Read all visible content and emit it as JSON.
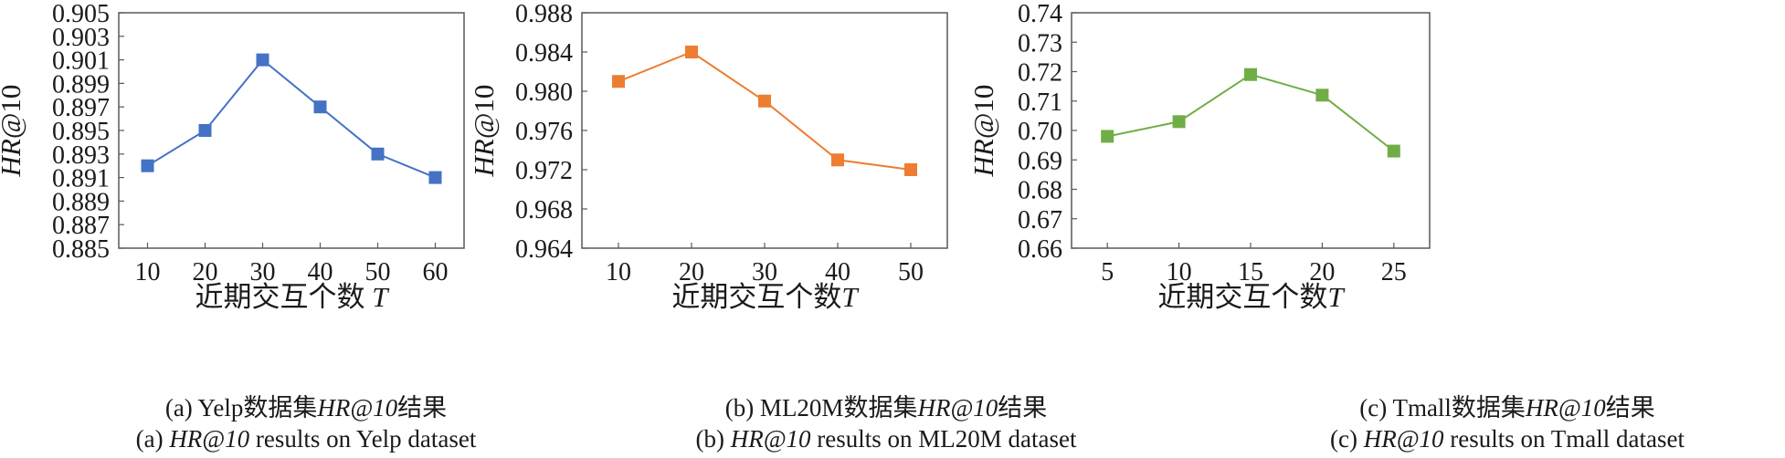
{
  "chart_data": [
    {
      "type": "line",
      "categories": [
        "10",
        "20",
        "30",
        "40",
        "50",
        "60"
      ],
      "series": [
        {
          "values": [
            0.892,
            0.895,
            0.901,
            0.897,
            0.893,
            0.891
          ],
          "color": "#4472c4"
        }
      ],
      "ylabel": "HR@10",
      "xlabel": "近期交互个数 T",
      "ylim": [
        0.885,
        0.905
      ],
      "yticks": [
        "0.885",
        "0.887",
        "0.889",
        "0.891",
        "0.893",
        "0.895",
        "0.897",
        "0.899",
        "0.901",
        "0.903",
        "0.905"
      ],
      "grid": false,
      "legend": "none",
      "caption": {
        "cn_prefix": "(a) Yelp数据集",
        "cn_metric": "HR@10",
        "cn_suffix": "结果",
        "en_prefix": "(a) ",
        "en_metric": "HR@10",
        "en_suffix": " results on Yelp dataset"
      }
    },
    {
      "type": "line",
      "categories": [
        "10",
        "20",
        "30",
        "40",
        "50"
      ],
      "series": [
        {
          "values": [
            0.981,
            0.984,
            0.979,
            0.973,
            0.972
          ],
          "color": "#ed7d31"
        }
      ],
      "ylabel": "HR@10",
      "xlabel": "近期交互个数T",
      "ylim": [
        0.964,
        0.988
      ],
      "yticks": [
        "0.964",
        "0.968",
        "0.972",
        "0.976",
        "0.980",
        "0.984",
        "0.988"
      ],
      "grid": false,
      "legend": "none",
      "caption": {
        "cn_prefix": "(b) ML20M数据集",
        "cn_metric": "HR@10",
        "cn_suffix": "结果",
        "en_prefix": "(b) ",
        "en_metric": "HR@10",
        "en_suffix": " results on ML20M dataset"
      }
    },
    {
      "type": "line",
      "categories": [
        "5",
        "10",
        "15",
        "20",
        "25"
      ],
      "series": [
        {
          "values": [
            0.698,
            0.703,
            0.719,
            0.712,
            0.693
          ],
          "color": "#70ad47"
        }
      ],
      "ylabel": "HR@10",
      "xlabel": "近期交互个数T",
      "ylim": [
        0.66,
        0.74
      ],
      "yticks": [
        "0.66",
        "0.67",
        "0.68",
        "0.69",
        "0.70",
        "0.71",
        "0.72",
        "0.73",
        "0.74"
      ],
      "grid": false,
      "legend": "none",
      "caption": {
        "cn_prefix": "(c) Tmall数据集",
        "cn_metric": "HR@10",
        "cn_suffix": "结果",
        "en_prefix": "(c) ",
        "en_metric": "HR@10",
        "en_suffix": " results on Tmall dataset"
      }
    }
  ]
}
